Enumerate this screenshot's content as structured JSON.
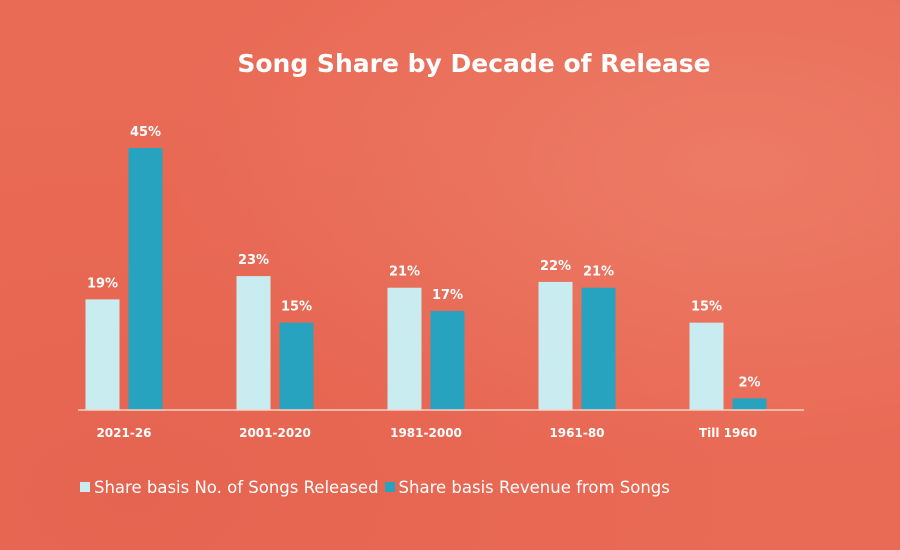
{
  "chart_data": {
    "type": "bar",
    "title": "Song Share by Decade of Release",
    "categories": [
      "2021-26",
      "2001-2020",
      "1981-2000",
      "1961-80",
      "Till 1960"
    ],
    "series": [
      {
        "name": "Share basis No. of Songs Released",
        "values": [
          19,
          23,
          21,
          22,
          15
        ],
        "labels": [
          "19%",
          "23%",
          "21%",
          "22%",
          "15%"
        ],
        "color": "#c9ecf1"
      },
      {
        "name": "Share basis Revenue from Songs",
        "values": [
          45,
          15,
          17,
          21,
          2
        ],
        "labels": [
          "45%",
          "15%",
          "17%",
          "21%",
          "2%"
        ],
        "color": "#27a2bf"
      }
    ],
    "ylim": [
      0,
      45
    ],
    "grid": false,
    "legend": "bottom-left",
    "colors": {
      "background": "#e96a55",
      "text": "#ffffff"
    }
  }
}
